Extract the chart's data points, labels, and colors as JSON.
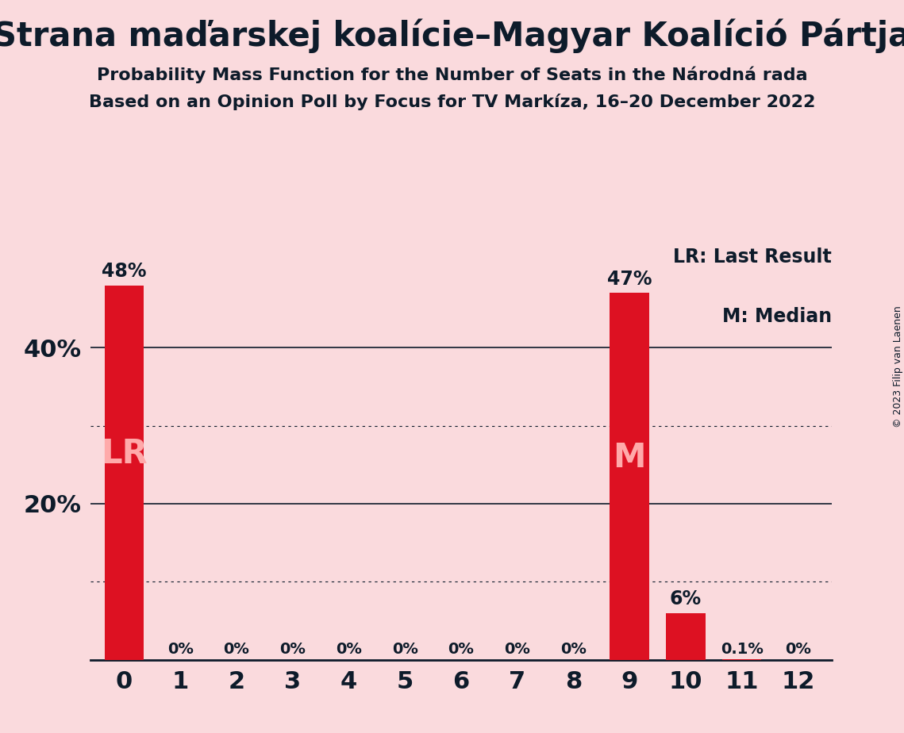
{
  "title": "Strana maďarskej koalície–Magyar Koalíció Pártja",
  "subtitle1": "Probability Mass Function for the Number of Seats in the Národná rada",
  "subtitle2": "Based on an Opinion Poll by Focus for TV Markíza, 16–20 December 2022",
  "copyright": "© 2023 Filip van Laenen",
  "legend_lr": "LR: Last Result",
  "legend_m": "M: Median",
  "categories": [
    0,
    1,
    2,
    3,
    4,
    5,
    6,
    7,
    8,
    9,
    10,
    11,
    12
  ],
  "values": [
    0.48,
    0.0,
    0.0,
    0.0,
    0.0,
    0.0,
    0.0,
    0.0,
    0.0,
    0.47,
    0.06,
    0.001,
    0.0
  ],
  "bar_labels": [
    "48%",
    "0%",
    "0%",
    "0%",
    "0%",
    "0%",
    "0%",
    "0%",
    "0%",
    "47%",
    "6%",
    "0.1%",
    "0%"
  ],
  "bar_color": "#DD1122",
  "background_color": "#FADADD",
  "text_color": "#0D1B2A",
  "lr_bar": 0,
  "median_bar": 9,
  "ylim": [
    0,
    0.545
  ],
  "ytick_positions": [
    0.2,
    0.4
  ],
  "ytick_labels": [
    "20%",
    "40%"
  ],
  "solid_gridlines": [
    0.2,
    0.4
  ],
  "dotted_gridlines": [
    0.1,
    0.3
  ]
}
